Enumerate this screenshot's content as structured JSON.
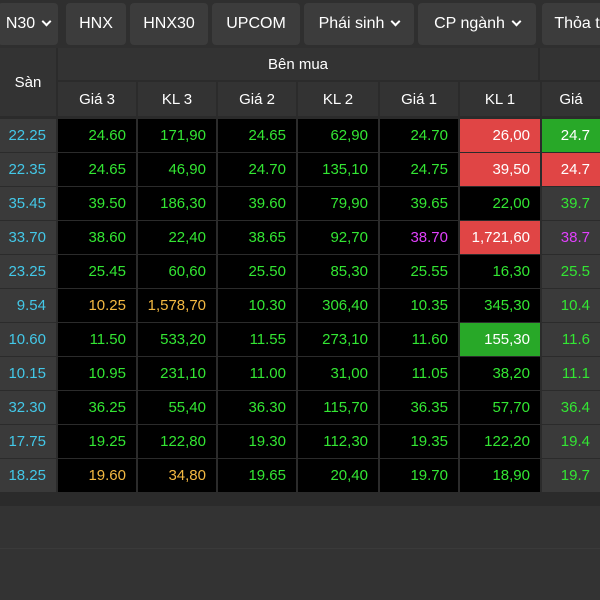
{
  "tabs": [
    {
      "label": "N30",
      "dropdown": true
    },
    {
      "label": "HNX",
      "dropdown": false
    },
    {
      "label": "HNX30",
      "dropdown": false
    },
    {
      "label": "UPCOM",
      "dropdown": false
    },
    {
      "label": "Phái sinh",
      "dropdown": true
    },
    {
      "label": "CP ngành",
      "dropdown": true
    },
    {
      "label": "Thỏa t",
      "dropdown": false
    }
  ],
  "header": {
    "san": "Sàn",
    "group_ben_mua": "Bên mua",
    "columns": [
      "Giá 3",
      "KL 3",
      "Giá 2",
      "KL 2",
      "Giá 1",
      "KL 1",
      "Giá"
    ]
  },
  "colors": {
    "green": "#33e633",
    "cyan": "#43c8e8",
    "red": "#e83e3e",
    "purple": "#e040fb",
    "yellow": "#f4b942",
    "white": "#ffffff",
    "cell_red": "#e04545",
    "cell_green": "#28a828"
  },
  "rows": [
    {
      "san": "22.25",
      "g3": "24.60",
      "k3": "171,90",
      "g2": "24.65",
      "k2": "62,90",
      "g1": "24.70",
      "k1": "26,00",
      "ga": "24.7",
      "c3": "green",
      "c2": "green",
      "c1": "green",
      "ca": "green",
      "k1bg": "cell_red",
      "k1fg": "white",
      "gabg": "cell_green",
      "gafg": "white"
    },
    {
      "san": "22.35",
      "g3": "24.65",
      "k3": "46,90",
      "g2": "24.70",
      "k2": "135,10",
      "g1": "24.75",
      "k1": "39,50",
      "ga": "24.7",
      "c3": "green",
      "c2": "green",
      "c1": "green",
      "ca": "green",
      "k1bg": "cell_red",
      "k1fg": "white",
      "gabg": "cell_red",
      "gafg": "white"
    },
    {
      "san": "35.45",
      "g3": "39.50",
      "k3": "186,30",
      "g2": "39.60",
      "k2": "79,90",
      "g1": "39.65",
      "k1": "22,00",
      "ga": "39.7",
      "c3": "green",
      "c2": "green",
      "c1": "green",
      "ca": "green",
      "k1bg": "",
      "k1fg": "green",
      "gabg": "",
      "gafg": "green"
    },
    {
      "san": "33.70",
      "g3": "38.60",
      "k3": "22,40",
      "g2": "38.65",
      "k2": "92,70",
      "g1": "38.70",
      "k1": "1,721,60",
      "ga": "38.7",
      "c3": "green",
      "c2": "green",
      "c1": "purple",
      "ca": "purple",
      "k1bg": "cell_red",
      "k1fg": "white",
      "gabg": "",
      "gafg": "purple"
    },
    {
      "san": "23.25",
      "g3": "25.45",
      "k3": "60,60",
      "g2": "25.50",
      "k2": "85,30",
      "g1": "25.55",
      "k1": "16,30",
      "ga": "25.5",
      "c3": "green",
      "c2": "green",
      "c1": "green",
      "ca": "green",
      "k1bg": "",
      "k1fg": "green",
      "gabg": "",
      "gafg": "green"
    },
    {
      "san": "9.54",
      "g3": "10.25",
      "k3": "1,578,70",
      "g2": "10.30",
      "k2": "306,40",
      "g1": "10.35",
      "k1": "345,30",
      "ga": "10.4",
      "c3": "yellow",
      "c2": "green",
      "c1": "green",
      "ca": "green",
      "k1bg": "",
      "k1fg": "green",
      "gabg": "",
      "gafg": "green"
    },
    {
      "san": "10.60",
      "g3": "11.50",
      "k3": "533,20",
      "g2": "11.55",
      "k2": "273,10",
      "g1": "11.60",
      "k1": "155,30",
      "ga": "11.6",
      "c3": "green",
      "c2": "green",
      "c1": "green",
      "ca": "green",
      "k1bg": "cell_green",
      "k1fg": "white",
      "gabg": "",
      "gafg": "green"
    },
    {
      "san": "10.15",
      "g3": "10.95",
      "k3": "231,10",
      "g2": "11.00",
      "k2": "31,00",
      "g1": "11.05",
      "k1": "38,20",
      "ga": "11.1",
      "c3": "green",
      "c2": "green",
      "c1": "green",
      "ca": "green",
      "k1bg": "",
      "k1fg": "green",
      "gabg": "",
      "gafg": "green"
    },
    {
      "san": "32.30",
      "g3": "36.25",
      "k3": "55,40",
      "g2": "36.30",
      "k2": "115,70",
      "g1": "36.35",
      "k1": "57,70",
      "ga": "36.4",
      "c3": "green",
      "c2": "green",
      "c1": "green",
      "ca": "green",
      "k1bg": "",
      "k1fg": "green",
      "gabg": "",
      "gafg": "green"
    },
    {
      "san": "17.75",
      "g3": "19.25",
      "k3": "122,80",
      "g2": "19.30",
      "k2": "112,30",
      "g1": "19.35",
      "k1": "122,20",
      "ga": "19.4",
      "c3": "green",
      "c2": "green",
      "c1": "green",
      "ca": "green",
      "k1bg": "",
      "k1fg": "green",
      "gabg": "",
      "gafg": "green"
    },
    {
      "san": "18.25",
      "g3": "19.60",
      "k3": "34,80",
      "g2": "19.65",
      "k2": "20,40",
      "g1": "19.70",
      "k1": "18,90",
      "ga": "19.7",
      "c3": "yellow",
      "c2": "green",
      "c1": "green",
      "ca": "green",
      "k1bg": "",
      "k1fg": "green",
      "gabg": "",
      "gafg": "green"
    }
  ]
}
